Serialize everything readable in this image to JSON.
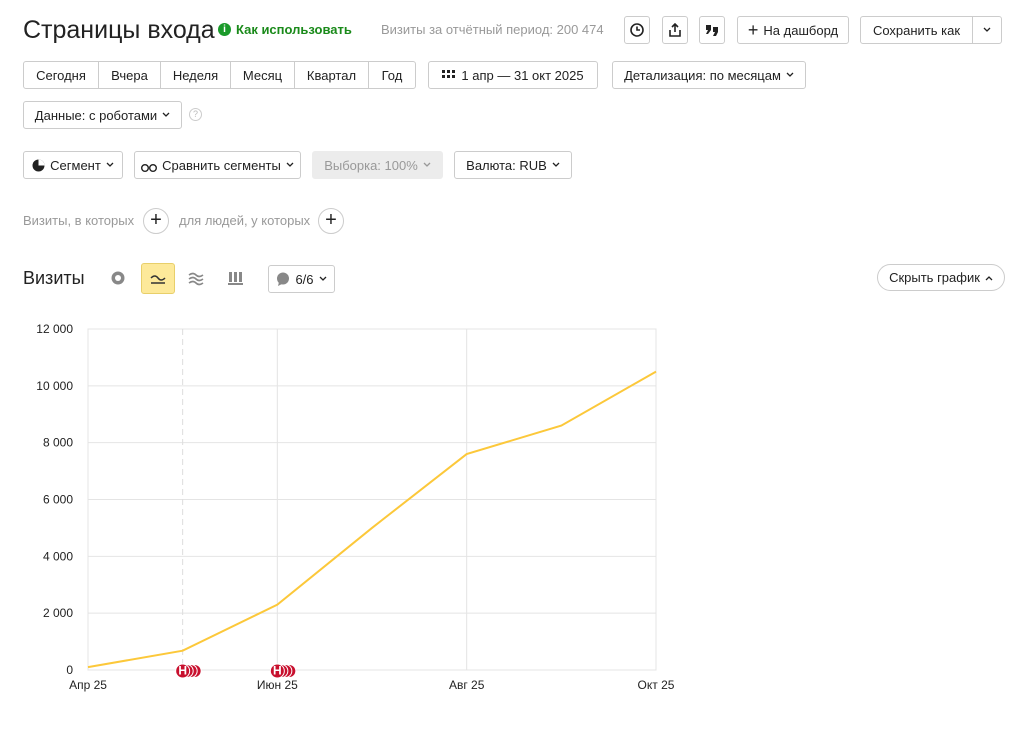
{
  "header": {
    "title": "Страницы входа",
    "help": "Как использовать",
    "visits_total": "Визиты за отчётный период: 200 474",
    "dashboard": "На дашборд",
    "save_as": "Сохранить как"
  },
  "periods": [
    "Сегодня",
    "Вчера",
    "Неделя",
    "Месяц",
    "Квартал",
    "Год"
  ],
  "date_range": "1 апр — 31 окт 2025",
  "detail": "Детализация: по месяцам",
  "data_filter": "Данные: с роботами",
  "filters": {
    "segment": "Сегмент",
    "compare": "Сравнить сегменты",
    "sample": "Выборка: 100%",
    "currency": "Валюта: RUB"
  },
  "conditions": {
    "visits": "Визиты, в которых",
    "people": "для людей, у которых"
  },
  "chart_header": {
    "title": "Визиты",
    "annotations_count": "6/6",
    "hide": "Скрыть график"
  },
  "chart_data": {
    "type": "line",
    "categories": [
      "Апр 25",
      null,
      "Июн 25",
      null,
      "Авг 25",
      null,
      "Окт 25"
    ],
    "series": [
      {
        "name": "Визиты",
        "color": "#fcc83a",
        "values": [
          100,
          680,
          2300,
          5000,
          7600,
          8600,
          10500
        ]
      }
    ],
    "ylim": [
      0,
      12000
    ],
    "yticks": [
      0,
      {
        "value": 2000,
        "label": "2 000"
      },
      {
        "value": 4000,
        "label": "4 000"
      },
      {
        "value": 6000,
        "label": "6 000"
      },
      {
        "value": 8000,
        "label": "8 000"
      },
      {
        "value": 10000,
        "label": "10 000"
      },
      {
        "value": 12000,
        "label": "12 000"
      }
    ],
    "grid": true,
    "markers": [
      {
        "category": 1,
        "label": "Н"
      },
      {
        "category": 2,
        "label": "Н"
      }
    ]
  }
}
